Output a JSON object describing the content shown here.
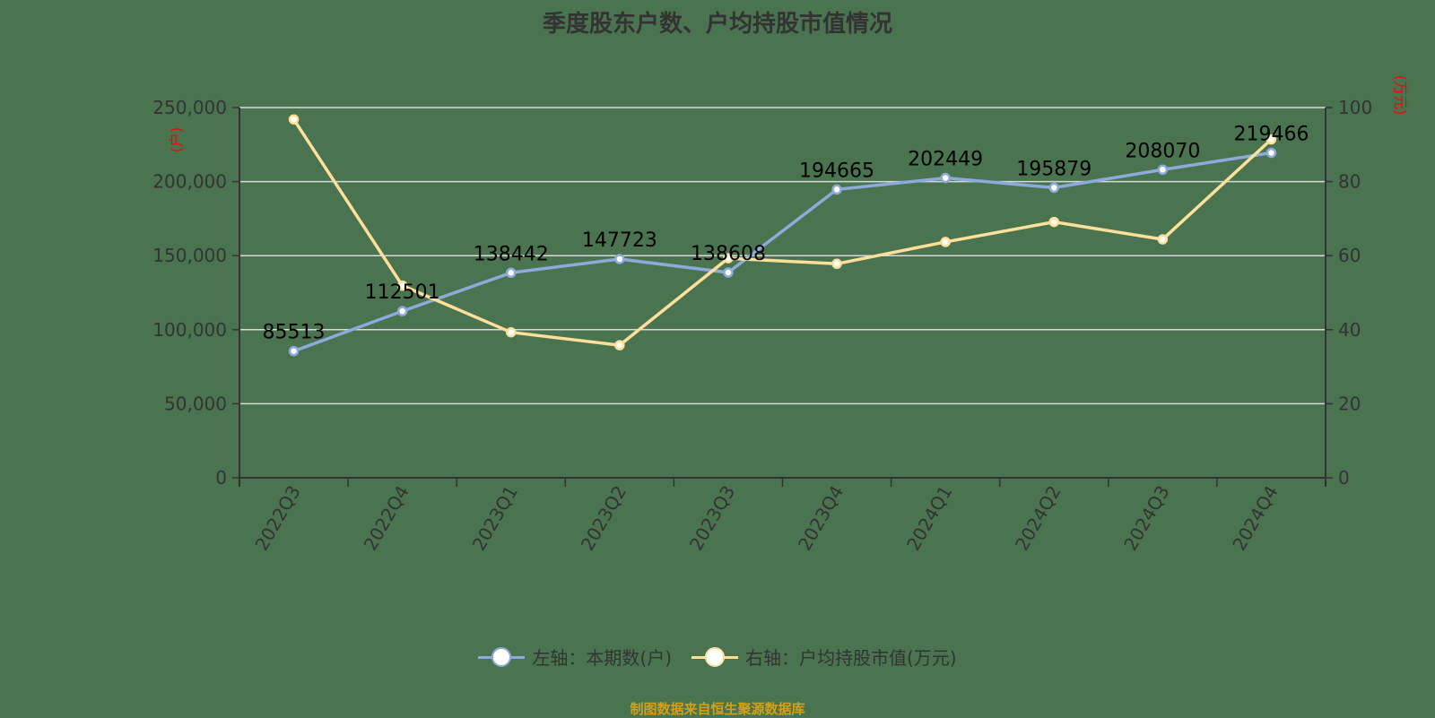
{
  "title": "季度股东户数、户均持股市值情况",
  "colors": {
    "background": "#4a7450",
    "series_left": "#8eaadb",
    "series_right": "#ffe09a",
    "grid": "#d9d9d9",
    "axis": "#333333",
    "unit_label": "#ff0000",
    "source": "#d4a017"
  },
  "legend": [
    {
      "label": "左轴：本期数(户)",
      "color": "#8eaadb"
    },
    {
      "label": "右轴：户均持股市值(万元)",
      "color": "#ffe09a"
    }
  ],
  "source_text": "制图数据来自恒生聚源数据库",
  "chart_data": {
    "type": "line",
    "title": "季度股东户数、户均持股市值情况",
    "categories": [
      "2022Q3",
      "2022Q4",
      "2023Q1",
      "2023Q2",
      "2023Q3",
      "2023Q4",
      "2024Q1",
      "2024Q2",
      "2024Q3",
      "2024Q4"
    ],
    "series": [
      {
        "name": "左轴：本期数(户)",
        "axis": "left",
        "values": [
          85513,
          112501,
          138442,
          147723,
          138608,
          194665,
          202449,
          195879,
          208070,
          219466
        ],
        "data_labels": [
          "85513",
          "112501",
          "138442",
          "147723",
          "138608",
          "194665",
          "202449",
          "195879",
          "208070",
          "219466"
        ]
      },
      {
        "name": "右轴：户均持股市值(万元)",
        "axis": "right",
        "values": [
          96.8,
          51.9,
          39.3,
          35.8,
          59.3,
          57.8,
          63.7,
          69.1,
          64.4,
          91.4
        ]
      }
    ],
    "left_axis": {
      "unit": "(户)",
      "ylim": [
        0,
        250000
      ],
      "ticks": [
        0,
        50000,
        100000,
        150000,
        200000,
        250000
      ],
      "tick_labels": [
        "0",
        "50,000",
        "100,000",
        "150,000",
        "200,000",
        "250,000"
      ]
    },
    "right_axis": {
      "unit": "(万元)",
      "ylim": [
        0,
        100
      ],
      "ticks": [
        0,
        20,
        40,
        60,
        80,
        100
      ],
      "tick_labels": [
        "0",
        "20",
        "40",
        "60",
        "80",
        "100"
      ]
    },
    "xlabel": "",
    "grid": true,
    "legend_position": "bottom"
  }
}
